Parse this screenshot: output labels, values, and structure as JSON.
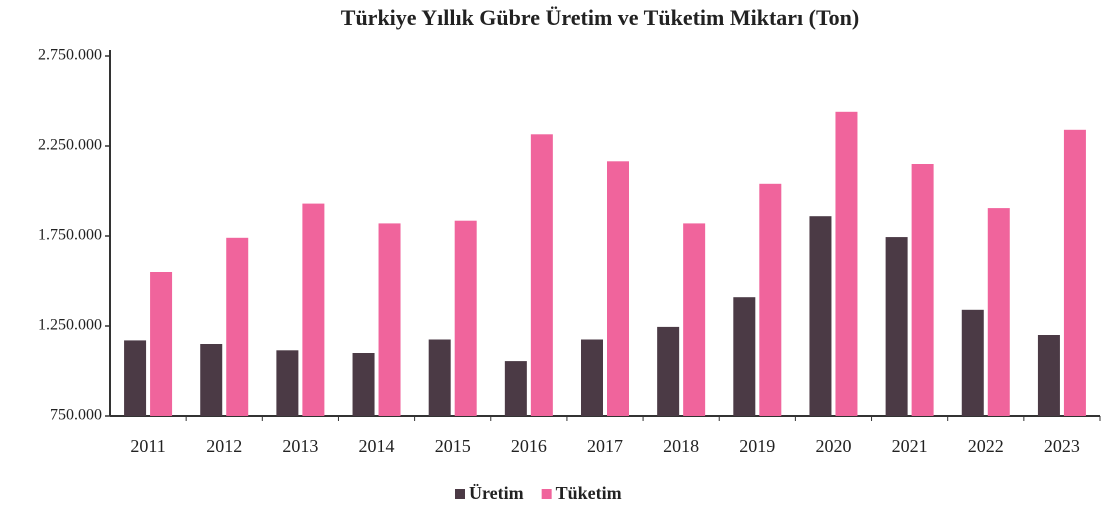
{
  "chart_data": {
    "type": "bar",
    "title": "Türkiye Yıllık  Gübre Üretim ve Tüketim Miktarı (Ton)",
    "categories": [
      "2011",
      "2012",
      "2013",
      "2014",
      "2015",
      "2016",
      "2017",
      "2018",
      "2019",
      "2020",
      "2021",
      "2022",
      "2023"
    ],
    "series": [
      {
        "name": "Üretim",
        "color": "#4b3a45",
        "values": [
          1170000,
          1150000,
          1115000,
          1100000,
          1175000,
          1055000,
          1175000,
          1245000,
          1410000,
          1860000,
          1744000,
          1340000,
          1200000
        ]
      },
      {
        "name": "Tüketim",
        "color": "#f0649c",
        "values": [
          1550000,
          1740000,
          1930000,
          1820000,
          1835000,
          2315000,
          2165000,
          1820000,
          2040000,
          2440000,
          2150000,
          1905000,
          2340000
        ]
      }
    ],
    "ylim": [
      750000,
      2750000
    ],
    "yticks": [
      {
        "value": 750000,
        "label": "750.000"
      },
      {
        "value": 1250000,
        "label": "1.250.000"
      },
      {
        "value": 1750000,
        "label": "1.750.000"
      },
      {
        "value": 2250000,
        "label": "2.250.000"
      },
      {
        "value": 2750000,
        "label": "2.750.000"
      }
    ],
    "legend": "bottom"
  }
}
